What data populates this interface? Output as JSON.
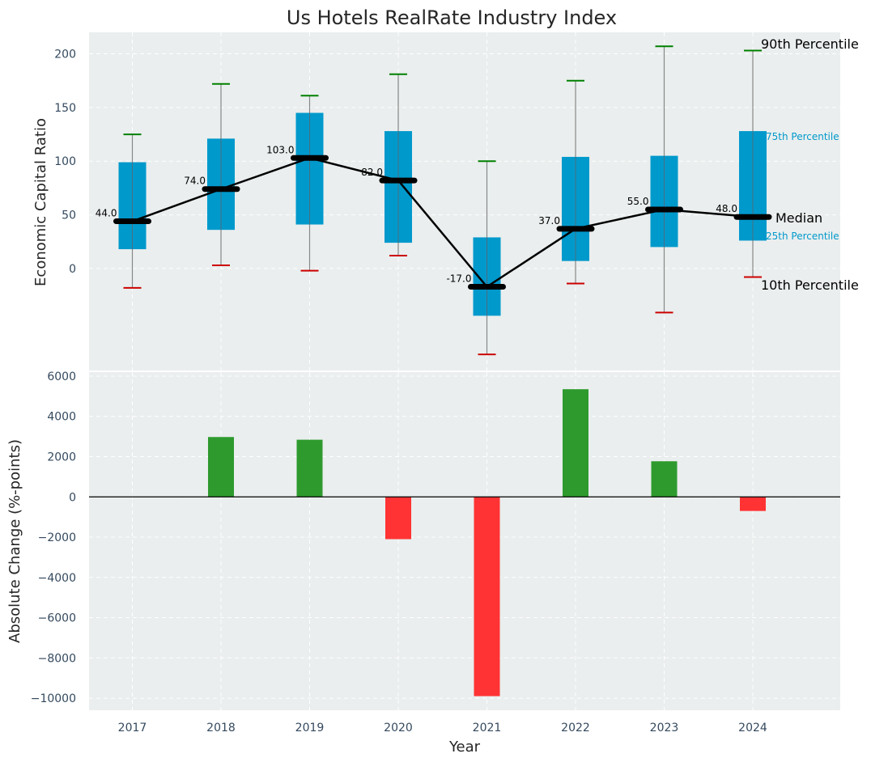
{
  "chart_data": [
    {
      "type": "box",
      "title": "Us Hotels RealRate Industry Index",
      "ylabel": "Economic Capital Ratio",
      "xlabel": "",
      "ylim": [
        -95,
        220
      ],
      "yticks": [
        0,
        50,
        100,
        150,
        200
      ],
      "categories": [
        "2017",
        "2018",
        "2019",
        "2020",
        "2021",
        "2022",
        "2023",
        "2024"
      ],
      "p10": [
        -18,
        3,
        -2,
        12,
        -80,
        -14,
        -41,
        -8
      ],
      "p25": [
        18,
        36,
        41,
        24,
        -44,
        7,
        20,
        26
      ],
      "median": [
        44,
        74,
        103,
        82,
        -17,
        37,
        55,
        48
      ],
      "p75": [
        99,
        121,
        145,
        128,
        29,
        104,
        105,
        128
      ],
      "p90": [
        125,
        172,
        161,
        181,
        100,
        175,
        207,
        203
      ],
      "median_labels": [
        "44.0",
        "74.0",
        "103.0",
        "82.0",
        "-17.0",
        "37.0",
        "55.0",
        "48.0"
      ],
      "legend": {
        "p90": "90th Percentile",
        "p75": "75th Percentile",
        "median": "Median",
        "p25": "25th Percentile",
        "p10": "10th Percentile"
      },
      "colors": {
        "box": "#0099cc",
        "median_line": "#000000",
        "p90_cap": "#008000",
        "p10_cap": "#cc0000",
        "whisker": "#888888"
      }
    },
    {
      "type": "bar",
      "ylabel": "Absolute Change (%-points)",
      "xlabel": "Year",
      "ylim": [
        -10600,
        6200
      ],
      "yticks": [
        6000,
        4000,
        2000,
        0,
        -2000,
        -4000,
        -6000,
        -8000,
        -10000
      ],
      "ytick_labels": [
        "6000",
        "4000",
        "2000",
        "0",
        "−2000",
        "−4000",
        "−6000",
        "−8000",
        "−10000"
      ],
      "categories": [
        "2017",
        "2018",
        "2019",
        "2020",
        "2021",
        "2022",
        "2023",
        "2024"
      ],
      "values": [
        0,
        2975,
        2840,
        -2100,
        -9900,
        5350,
        1770,
        -700
      ],
      "colors": {
        "positive": "#2e9a2e",
        "negative": "#ff3333"
      }
    }
  ],
  "colors": {
    "plot_bg": "#eaeeee",
    "grid": "#ffffff",
    "tick_text": "#34495e"
  }
}
